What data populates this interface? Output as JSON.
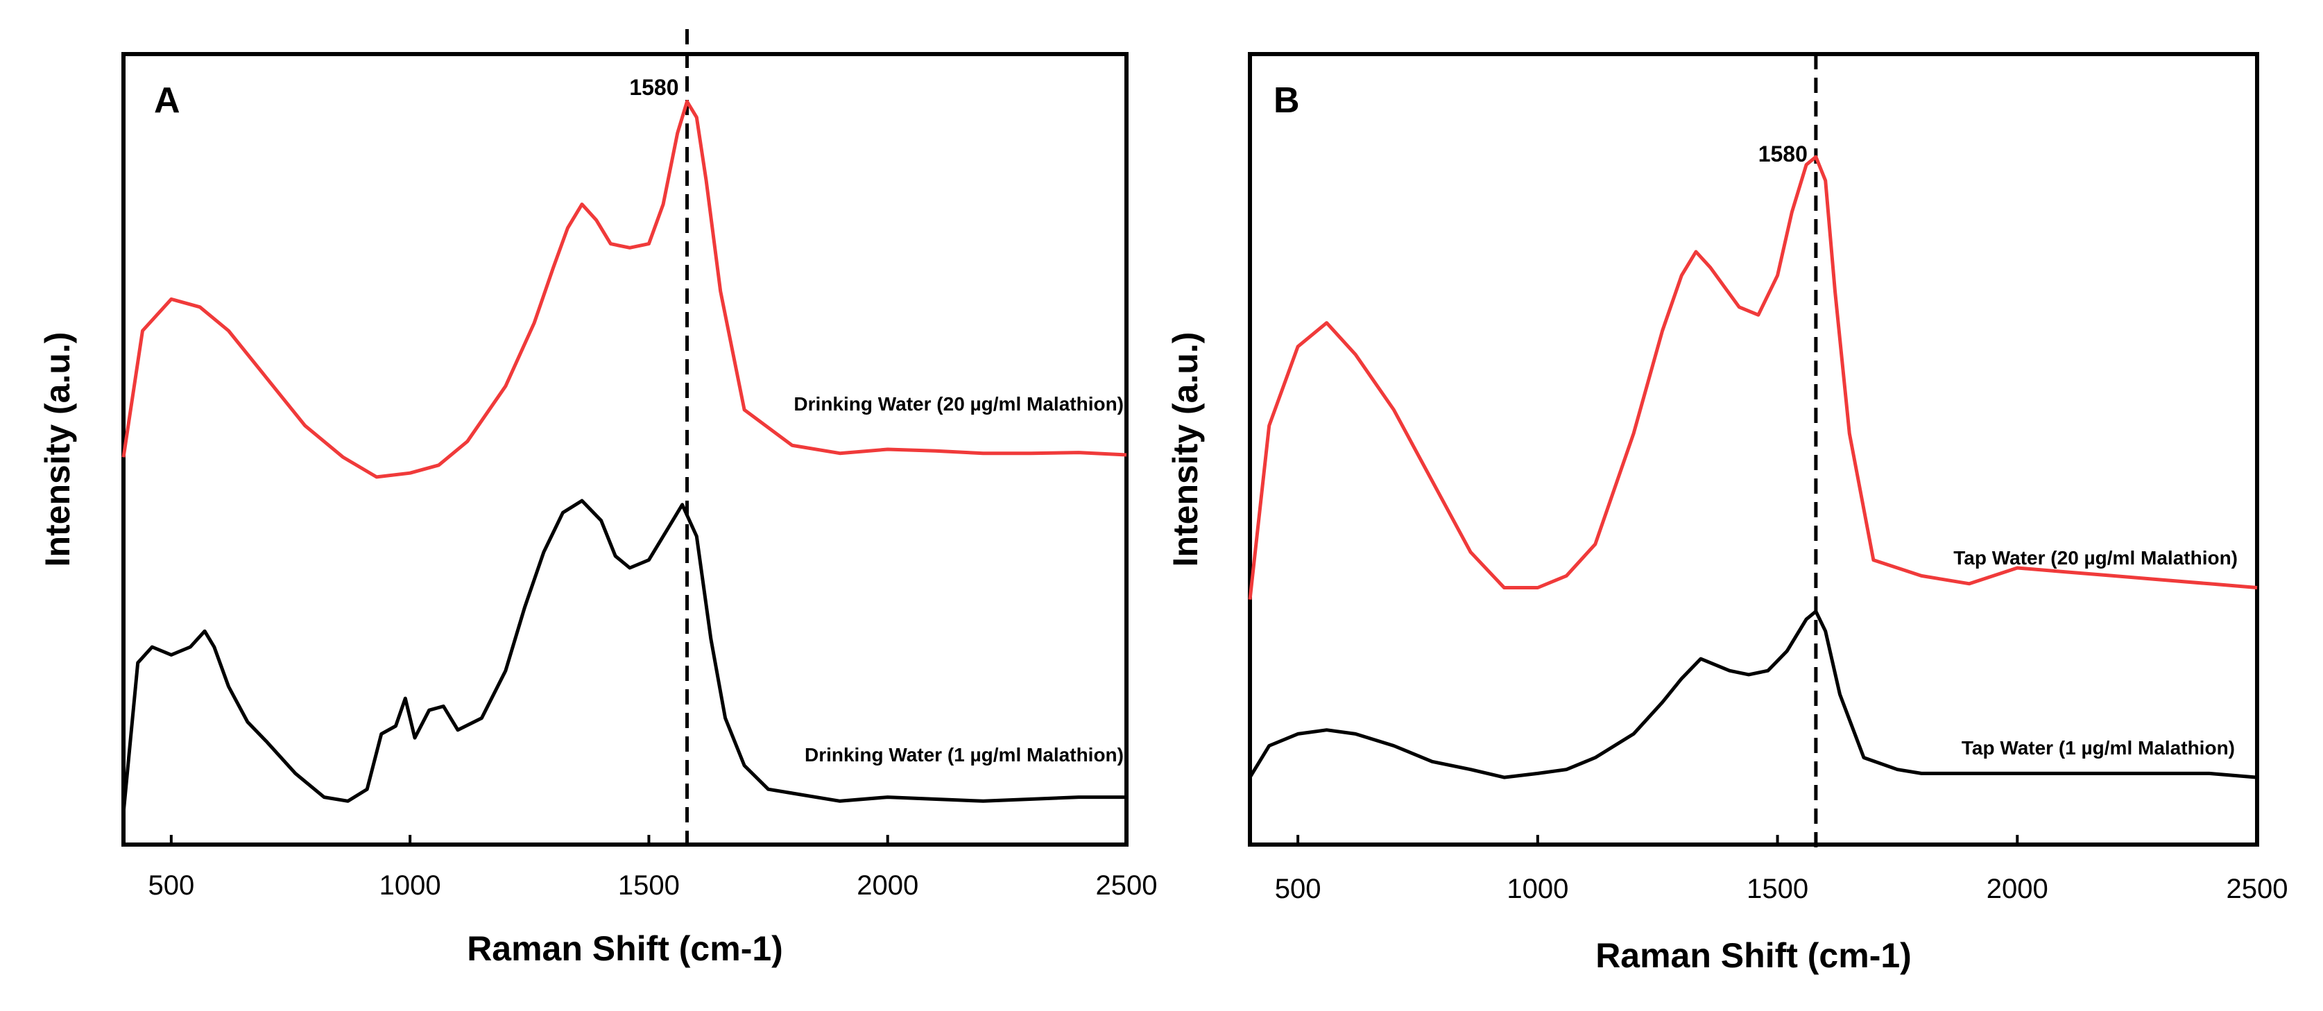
{
  "chart_data": [
    {
      "panel": "A",
      "type": "line",
      "xlabel": "Raman Shift (cm-1)",
      "ylabel": "Intensity (a.u.)",
      "xlim": [
        400,
        2500
      ],
      "ylim": [
        0,
        100
      ],
      "xticks": [
        "500",
        "1000",
        "1500",
        "2000",
        "2500"
      ],
      "xtick_values": [
        500,
        1000,
        1500,
        2000,
        2500
      ],
      "peak": {
        "x": 1580,
        "label": "1580"
      },
      "colors": {
        "top": "#f03a3a",
        "bottom": "#000000"
      },
      "series": [
        {
          "name": "Drinking Water (20 µg/ml Malathion)",
          "color": "#f03a3a",
          "x": [
            400,
            440,
            500,
            560,
            620,
            700,
            780,
            860,
            930,
            1000,
            1060,
            1120,
            1200,
            1260,
            1300,
            1330,
            1360,
            1390,
            1420,
            1460,
            1500,
            1530,
            1560,
            1580,
            1600,
            1620,
            1650,
            1700,
            1800,
            1900,
            2000,
            2100,
            2200,
            2300,
            2400,
            2500
          ],
          "values": [
            49,
            65,
            69,
            68,
            65,
            59,
            53,
            49,
            46.5,
            47,
            48,
            51,
            58,
            66,
            73,
            78,
            81,
            79,
            76,
            75.5,
            76,
            81,
            90,
            94,
            92,
            84,
            70,
            55,
            50.5,
            49.5,
            50,
            49.8,
            49.5,
            49.5,
            49.6,
            49.3
          ]
        },
        {
          "name": "Drinking Water (1 µg/ml Malathion)",
          "color": "#000000",
          "x": [
            400,
            430,
            460,
            500,
            540,
            570,
            590,
            620,
            660,
            700,
            760,
            820,
            870,
            910,
            940,
            970,
            990,
            1010,
            1040,
            1070,
            1100,
            1150,
            1200,
            1240,
            1280,
            1320,
            1360,
            1400,
            1430,
            1460,
            1500,
            1540,
            1570,
            1600,
            1630,
            1660,
            1700,
            1750,
            1800,
            1900,
            2000,
            2200,
            2400,
            2500
          ],
          "values": [
            4,
            23,
            25,
            24,
            25,
            27,
            25,
            20,
            15.5,
            13,
            9,
            6,
            5.5,
            7,
            14,
            15,
            18.5,
            13.5,
            17,
            17.5,
            14.5,
            16,
            22,
            30,
            37,
            42,
            43.5,
            41,
            36.5,
            35,
            36,
            40,
            43,
            39,
            26,
            16,
            10,
            7,
            6.5,
            5.5,
            6,
            5.5,
            6,
            6
          ]
        }
      ]
    },
    {
      "panel": "B",
      "type": "line",
      "xlabel": "Raman Shift (cm-1)",
      "ylabel": "Intensity (a.u.)",
      "xlim": [
        400,
        2500
      ],
      "ylim": [
        0,
        100
      ],
      "xticks": [
        "500",
        "1000",
        "1500",
        "2000",
        "2500"
      ],
      "xtick_values": [
        500,
        1000,
        1500,
        2000,
        2500
      ],
      "peak": {
        "x": 1580,
        "label": "1580"
      },
      "colors": {
        "top": "#f03a3a",
        "bottom": "#000000"
      },
      "series": [
        {
          "name": "Tap Water (20 µg/ml Malathion)",
          "color": "#f03a3a",
          "x": [
            400,
            440,
            500,
            560,
            620,
            700,
            780,
            860,
            930,
            1000,
            1060,
            1120,
            1200,
            1260,
            1300,
            1330,
            1360,
            1390,
            1420,
            1460,
            1500,
            1530,
            1560,
            1580,
            1600,
            1620,
            1650,
            1700,
            1800,
            1900,
            2000,
            2100,
            2200,
            2300,
            2400,
            2500
          ],
          "values": [
            31,
            53,
            63,
            66,
            62,
            55,
            46,
            37,
            32.5,
            32.5,
            34,
            38,
            52,
            65,
            72,
            75,
            73,
            70.5,
            68,
            67,
            72,
            80,
            86,
            87,
            84,
            70,
            52,
            36,
            34,
            33,
            35,
            34.5,
            34,
            33.5,
            33,
            32.5
          ]
        },
        {
          "name": "Tap Water (1 µg/ml Malathion)",
          "color": "#000000",
          "x": [
            400,
            440,
            500,
            560,
            620,
            700,
            780,
            860,
            930,
            1000,
            1060,
            1120,
            1200,
            1260,
            1300,
            1340,
            1360,
            1400,
            1440,
            1480,
            1520,
            1560,
            1580,
            1600,
            1630,
            1680,
            1750,
            1800,
            1900,
            2000,
            2200,
            2400,
            2500
          ],
          "values": [
            8.5,
            12.5,
            14,
            14.5,
            14,
            12.5,
            10.5,
            9.5,
            8.5,
            9,
            9.5,
            11,
            14,
            18,
            21,
            23.5,
            23,
            22,
            21.5,
            22,
            24.5,
            28.5,
            29.5,
            27,
            19,
            11,
            9.5,
            9,
            9,
            9,
            9,
            9,
            8.5
          ]
        }
      ]
    }
  ]
}
